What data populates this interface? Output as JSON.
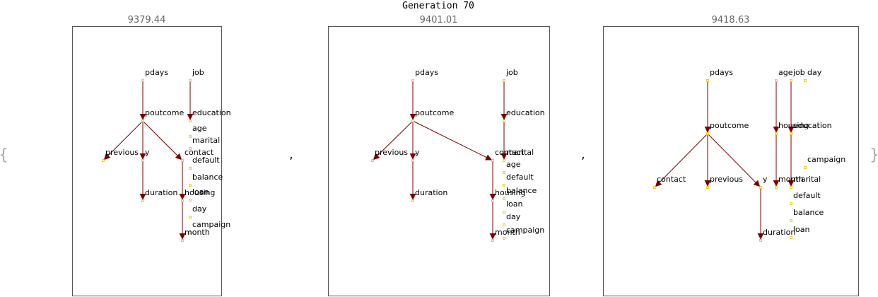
{
  "title": "Generation 70",
  "brace_open": "{",
  "brace_close": "}",
  "separator": ",",
  "colors": {
    "edge": "#7a0000",
    "node": "#e8c200",
    "frame": "#555555",
    "score": "#666666"
  },
  "panels": [
    {
      "score": "9379.44",
      "nodes": [
        {
          "id": "pdays",
          "label": "pdays"
        },
        {
          "id": "job",
          "label": "job"
        },
        {
          "id": "poutcome",
          "label": "poutcome"
        },
        {
          "id": "education",
          "label": "education"
        },
        {
          "id": "age",
          "label": "age"
        },
        {
          "id": "marital",
          "label": "marital"
        },
        {
          "id": "previous",
          "label": "previous"
        },
        {
          "id": "y",
          "label": "y"
        },
        {
          "id": "contact",
          "label": "contact"
        },
        {
          "id": "default",
          "label": "default"
        },
        {
          "id": "balance",
          "label": "balance"
        },
        {
          "id": "duration",
          "label": "duration"
        },
        {
          "id": "housing",
          "label": "housing"
        },
        {
          "id": "loan",
          "label": "loan"
        },
        {
          "id": "day",
          "label": "day"
        },
        {
          "id": "campaign",
          "label": "campaign"
        },
        {
          "id": "month",
          "label": "month"
        }
      ],
      "edges": [
        [
          "pdays",
          "poutcome"
        ],
        [
          "job",
          "education"
        ],
        [
          "poutcome",
          "previous"
        ],
        [
          "poutcome",
          "y"
        ],
        [
          "poutcome",
          "contact"
        ],
        [
          "y",
          "duration"
        ],
        [
          "contact",
          "housing"
        ],
        [
          "housing",
          "month"
        ]
      ]
    },
    {
      "score": "9401.01",
      "nodes": [
        {
          "id": "pdays",
          "label": "pdays"
        },
        {
          "id": "job",
          "label": "job"
        },
        {
          "id": "poutcome",
          "label": "poutcome"
        },
        {
          "id": "education",
          "label": "education"
        },
        {
          "id": "previous",
          "label": "previous"
        },
        {
          "id": "y",
          "label": "y"
        },
        {
          "id": "contact",
          "label": "contact"
        },
        {
          "id": "marital",
          "label": "marital"
        },
        {
          "id": "age",
          "label": "age"
        },
        {
          "id": "default",
          "label": "default"
        },
        {
          "id": "duration",
          "label": "duration"
        },
        {
          "id": "housing",
          "label": "housing"
        },
        {
          "id": "balance",
          "label": "balance"
        },
        {
          "id": "loan",
          "label": "loan"
        },
        {
          "id": "day",
          "label": "day"
        },
        {
          "id": "month",
          "label": "month"
        },
        {
          "id": "campaign",
          "label": "campaign"
        }
      ],
      "edges": [
        [
          "pdays",
          "poutcome"
        ],
        [
          "job",
          "education"
        ],
        [
          "poutcome",
          "previous"
        ],
        [
          "poutcome",
          "y"
        ],
        [
          "poutcome",
          "contact"
        ],
        [
          "y",
          "duration"
        ],
        [
          "education",
          "marital"
        ],
        [
          "contact",
          "housing"
        ],
        [
          "housing",
          "month"
        ]
      ]
    },
    {
      "score": "9418.63",
      "nodes": [
        {
          "id": "pdays",
          "label": "pdays"
        },
        {
          "id": "age",
          "label": "age"
        },
        {
          "id": "job",
          "label": "job"
        },
        {
          "id": "day",
          "label": "day"
        },
        {
          "id": "poutcome",
          "label": "poutcome"
        },
        {
          "id": "housing",
          "label": "housing"
        },
        {
          "id": "education",
          "label": "education"
        },
        {
          "id": "campaign",
          "label": "campaign"
        },
        {
          "id": "contact",
          "label": "contact"
        },
        {
          "id": "previous",
          "label": "previous"
        },
        {
          "id": "y",
          "label": "y"
        },
        {
          "id": "month",
          "label": "month"
        },
        {
          "id": "marital",
          "label": "marital"
        },
        {
          "id": "default",
          "label": "default"
        },
        {
          "id": "balance",
          "label": "balance"
        },
        {
          "id": "duration",
          "label": "duration"
        },
        {
          "id": "loan",
          "label": "loan"
        }
      ],
      "edges": [
        [
          "pdays",
          "poutcome"
        ],
        [
          "poutcome",
          "contact"
        ],
        [
          "poutcome",
          "previous"
        ],
        [
          "poutcome",
          "y"
        ],
        [
          "y",
          "duration"
        ],
        [
          "age",
          "housing"
        ],
        [
          "housing",
          "month"
        ],
        [
          "job",
          "education"
        ],
        [
          "education",
          "marital"
        ]
      ]
    }
  ]
}
